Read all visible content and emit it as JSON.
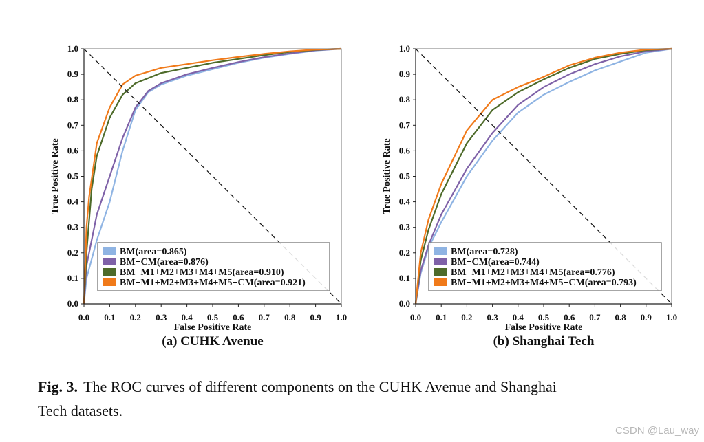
{
  "chart_data": [
    {
      "type": "line",
      "title": "(a) CUHK Avenue",
      "xlabel": "False Positive Rate",
      "ylabel": "True Positive Rate",
      "xlim": [
        0,
        1
      ],
      "ylim": [
        0,
        1
      ],
      "xticks": [
        "0.0",
        "0.1",
        "0.2",
        "0.3",
        "0.4",
        "0.5",
        "0.6",
        "0.7",
        "0.8",
        "0.9",
        "1.0"
      ],
      "yticks": [
        "0.0",
        "0.1",
        "0.2",
        "0.3",
        "0.4",
        "0.5",
        "0.6",
        "0.7",
        "0.8",
        "0.9",
        "1.0"
      ],
      "grid": false,
      "legend_position": "bottom-right",
      "reference_line": "dashed diagonal from (0,1) to (1,0)",
      "series": [
        {
          "name": "BM(area=0.865)",
          "color": "#8fb4e3",
          "x": [
            0,
            0.01,
            0.05,
            0.1,
            0.15,
            0.2,
            0.25,
            0.3,
            0.4,
            0.5,
            0.6,
            0.7,
            0.8,
            0.9,
            1
          ],
          "y": [
            0,
            0.1,
            0.25,
            0.4,
            0.6,
            0.76,
            0.83,
            0.86,
            0.895,
            0.92,
            0.945,
            0.965,
            0.98,
            0.993,
            1
          ]
        },
        {
          "name": "BM+CM(area=0.876)",
          "color": "#7f62a8",
          "x": [
            0,
            0.01,
            0.05,
            0.1,
            0.15,
            0.2,
            0.25,
            0.3,
            0.4,
            0.5,
            0.6,
            0.7,
            0.8,
            0.9,
            1
          ],
          "y": [
            0,
            0.15,
            0.35,
            0.5,
            0.65,
            0.77,
            0.835,
            0.865,
            0.9,
            0.925,
            0.948,
            0.967,
            0.982,
            0.994,
            1
          ]
        },
        {
          "name": "BM+M1+M2+M3+M4+M5(area=0.910)",
          "color": "#4e6b2a",
          "x": [
            0,
            0.01,
            0.03,
            0.05,
            0.1,
            0.15,
            0.2,
            0.3,
            0.4,
            0.5,
            0.6,
            0.7,
            0.8,
            0.9,
            1
          ],
          "y": [
            0,
            0.2,
            0.45,
            0.58,
            0.73,
            0.82,
            0.865,
            0.905,
            0.925,
            0.945,
            0.96,
            0.975,
            0.988,
            0.996,
            1
          ]
        },
        {
          "name": "BM+M1+M2+M3+M4+M5+CM(area=0.921)",
          "color": "#f07a1a",
          "x": [
            0,
            0.01,
            0.02,
            0.05,
            0.1,
            0.15,
            0.2,
            0.3,
            0.4,
            0.5,
            0.6,
            0.7,
            0.8,
            0.9,
            1
          ],
          "y": [
            0,
            0.3,
            0.42,
            0.63,
            0.77,
            0.86,
            0.895,
            0.925,
            0.94,
            0.955,
            0.968,
            0.98,
            0.99,
            0.997,
            1
          ]
        }
      ]
    },
    {
      "type": "line",
      "title": "(b) Shanghai Tech",
      "xlabel": "False Positive Rate",
      "ylabel": "True Positive Rate",
      "xlim": [
        0,
        1
      ],
      "ylim": [
        0,
        1
      ],
      "xticks": [
        "0.0",
        "0.1",
        "0.2",
        "0.3",
        "0.4",
        "0.5",
        "0.6",
        "0.7",
        "0.8",
        "0.9",
        "1.0"
      ],
      "yticks": [
        "0.0",
        "0.1",
        "0.2",
        "0.3",
        "0.4",
        "0.5",
        "0.6",
        "0.7",
        "0.8",
        "0.9",
        "1.0"
      ],
      "grid": false,
      "legend_position": "bottom-right",
      "reference_line": "dashed diagonal from (0,1) to (1,0)",
      "series": [
        {
          "name": "BM(area=0.728)",
          "color": "#8fb4e3",
          "x": [
            0,
            0.02,
            0.05,
            0.1,
            0.2,
            0.3,
            0.4,
            0.5,
            0.6,
            0.7,
            0.8,
            0.9,
            1
          ],
          "y": [
            0,
            0.12,
            0.22,
            0.32,
            0.5,
            0.64,
            0.75,
            0.82,
            0.87,
            0.915,
            0.95,
            0.985,
            1
          ]
        },
        {
          "name": "BM+CM(area=0.744)",
          "color": "#7f62a8",
          "x": [
            0,
            0.02,
            0.05,
            0.1,
            0.2,
            0.3,
            0.4,
            0.5,
            0.6,
            0.7,
            0.8,
            0.9,
            1
          ],
          "y": [
            0,
            0.13,
            0.23,
            0.35,
            0.53,
            0.67,
            0.78,
            0.85,
            0.9,
            0.94,
            0.97,
            0.99,
            1
          ]
        },
        {
          "name": "BM+M1+M2+M3+M4+M5(area=0.776)",
          "color": "#4e6b2a",
          "x": [
            0,
            0.02,
            0.05,
            0.1,
            0.2,
            0.3,
            0.4,
            0.5,
            0.6,
            0.7,
            0.8,
            0.9,
            1
          ],
          "y": [
            0,
            0.17,
            0.29,
            0.43,
            0.63,
            0.76,
            0.83,
            0.88,
            0.925,
            0.96,
            0.98,
            0.995,
            1
          ]
        },
        {
          "name": "BM+M1+M2+M3+M4+M5+CM(area=0.793)",
          "color": "#f07a1a",
          "x": [
            0,
            0.02,
            0.05,
            0.1,
            0.2,
            0.3,
            0.4,
            0.5,
            0.6,
            0.7,
            0.8,
            0.9,
            1
          ],
          "y": [
            0,
            0.2,
            0.33,
            0.47,
            0.68,
            0.8,
            0.85,
            0.89,
            0.935,
            0.965,
            0.985,
            0.997,
            1
          ]
        }
      ]
    }
  ],
  "caption": {
    "label": "Fig. 3.",
    "line1": "The ROC curves of different components on the CUHK Avenue and Shanghai",
    "line2": "Tech datasets."
  },
  "watermark": "CSDN @Lau_way"
}
